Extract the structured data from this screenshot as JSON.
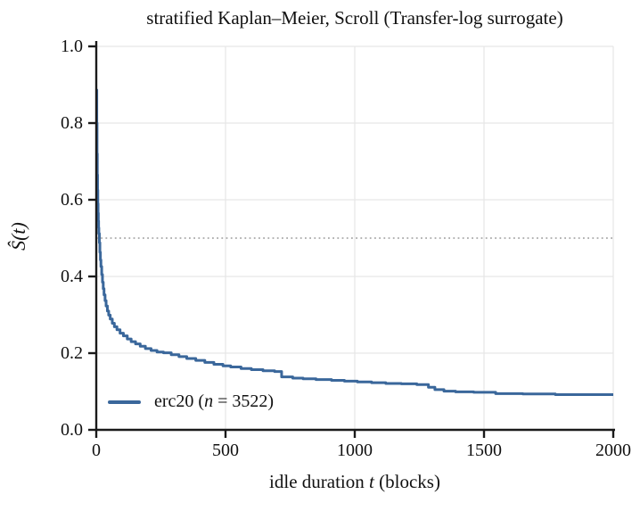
{
  "chart_data": {
    "type": "line",
    "subtype": "kaplan-meier-step",
    "title": "stratified Kaplan–Meier, Scroll (Transfer-log surrogate)",
    "xlabel_parts": {
      "pre": "idle duration ",
      "var": "t",
      "post": " (blocks)"
    },
    "ylabel": "Ŝ(t)",
    "xlim": [
      0,
      2000
    ],
    "ylim": [
      0.0,
      1.0
    ],
    "xticks": [
      0,
      500,
      1000,
      1500,
      2000
    ],
    "xtick_labels": [
      "0",
      "500",
      "1000",
      "1500",
      "2000"
    ],
    "yticks": [
      0.0,
      0.2,
      0.4,
      0.6,
      0.8,
      1.0
    ],
    "ytick_labels": [
      "0.0",
      "0.2",
      "0.4",
      "0.6",
      "0.8",
      "1.0"
    ],
    "grid": true,
    "legend_position": "lower left",
    "reference_line": {
      "y": 0.5,
      "style": "dotted"
    },
    "colors": {
      "curve": "#3a679b",
      "grid": "#e6e6e6",
      "reference": "#9a9a9a",
      "axis": "#1a1a1a",
      "text": "#111111",
      "background": "#ffffff"
    },
    "series": [
      {
        "name": "erc20 (n = 3522)",
        "label_pre": "erc20 (",
        "label_var": "n",
        "label_post": " = 3522)",
        "n": 3522,
        "color": "#3a679b",
        "step": "post",
        "points": [
          [
            0,
            0.886
          ],
          [
            2,
            0.8
          ],
          [
            3,
            0.72
          ],
          [
            4,
            0.665
          ],
          [
            5,
            0.625
          ],
          [
            6,
            0.59
          ],
          [
            7,
            0.565
          ],
          [
            8,
            0.545
          ],
          [
            9,
            0.527
          ],
          [
            10,
            0.512
          ],
          [
            12,
            0.488
          ],
          [
            14,
            0.463
          ],
          [
            16,
            0.443
          ],
          [
            18,
            0.426
          ],
          [
            21,
            0.405
          ],
          [
            24,
            0.385
          ],
          [
            27,
            0.368
          ],
          [
            30,
            0.352
          ],
          [
            34,
            0.337
          ],
          [
            38,
            0.323
          ],
          [
            43,
            0.31
          ],
          [
            48,
            0.299
          ],
          [
            54,
            0.289
          ],
          [
            62,
            0.278
          ],
          [
            70,
            0.269
          ],
          [
            80,
            0.261
          ],
          [
            92,
            0.252
          ],
          [
            105,
            0.245
          ],
          [
            120,
            0.237
          ],
          [
            135,
            0.23
          ],
          [
            152,
            0.224
          ],
          [
            170,
            0.218
          ],
          [
            190,
            0.212
          ],
          [
            212,
            0.207
          ],
          [
            235,
            0.203
          ],
          [
            260,
            0.201
          ],
          [
            290,
            0.196
          ],
          [
            320,
            0.191
          ],
          [
            350,
            0.186
          ],
          [
            385,
            0.181
          ],
          [
            420,
            0.176
          ],
          [
            455,
            0.171
          ],
          [
            490,
            0.167
          ],
          [
            520,
            0.164
          ],
          [
            560,
            0.16
          ],
          [
            600,
            0.157
          ],
          [
            645,
            0.154
          ],
          [
            690,
            0.152
          ],
          [
            717,
            0.138
          ],
          [
            760,
            0.135
          ],
          [
            800,
            0.133
          ],
          [
            850,
            0.131
          ],
          [
            910,
            0.129
          ],
          [
            960,
            0.127
          ],
          [
            1010,
            0.125
          ],
          [
            1065,
            0.123
          ],
          [
            1120,
            0.121
          ],
          [
            1180,
            0.12
          ],
          [
            1240,
            0.118
          ],
          [
            1285,
            0.111
          ],
          [
            1310,
            0.105
          ],
          [
            1345,
            0.101
          ],
          [
            1390,
            0.099
          ],
          [
            1460,
            0.098
          ],
          [
            1545,
            0.0945
          ],
          [
            1650,
            0.0935
          ],
          [
            1776,
            0.092
          ],
          [
            2000,
            0.092
          ]
        ]
      }
    ]
  }
}
